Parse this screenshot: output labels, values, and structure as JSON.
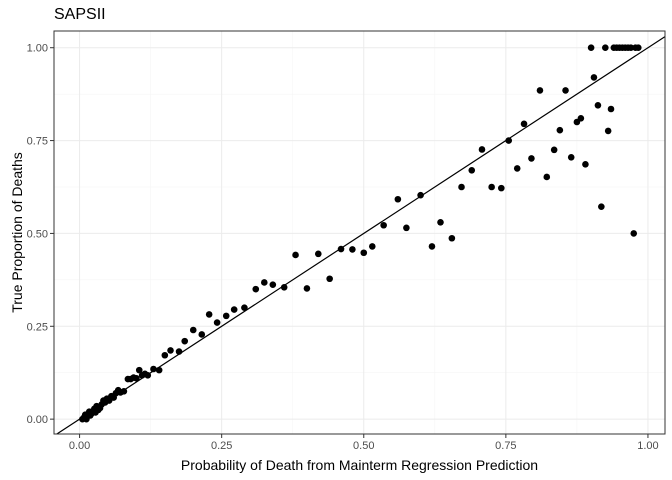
{
  "chart_data": {
    "type": "scatter",
    "title": "SAPSII",
    "xlabel": "Probability of Death from Mainterm Regression Prediction",
    "ylabel": "True Proportion of Deaths",
    "xlim": [
      -0.045,
      1.03
    ],
    "ylim": [
      -0.04,
      1.045
    ],
    "x_ticks": [
      0.0,
      0.25,
      0.5,
      0.75,
      1.0
    ],
    "x_tick_labels": [
      "0.00",
      "0.25",
      "0.50",
      "0.75",
      "1.00"
    ],
    "y_ticks": [
      0.0,
      0.25,
      0.5,
      0.75,
      1.0
    ],
    "y_tick_labels": [
      "0.00",
      "0.25",
      "0.50",
      "0.75",
      "1.00"
    ],
    "grid": true,
    "reference_line": {
      "intercept": 0,
      "slope": 1
    },
    "points": [
      [
        0.005,
        0.0
      ],
      [
        0.008,
        0.005
      ],
      [
        0.01,
        0.012
      ],
      [
        0.012,
        0.0
      ],
      [
        0.014,
        0.008
      ],
      [
        0.017,
        0.02
      ],
      [
        0.019,
        0.01
      ],
      [
        0.021,
        0.015
      ],
      [
        0.024,
        0.022
      ],
      [
        0.026,
        0.028
      ],
      [
        0.028,
        0.018
      ],
      [
        0.03,
        0.035
      ],
      [
        0.033,
        0.025
      ],
      [
        0.036,
        0.03
      ],
      [
        0.039,
        0.04
      ],
      [
        0.042,
        0.05
      ],
      [
        0.045,
        0.045
      ],
      [
        0.048,
        0.055
      ],
      [
        0.052,
        0.05
      ],
      [
        0.056,
        0.062
      ],
      [
        0.06,
        0.058
      ],
      [
        0.064,
        0.07
      ],
      [
        0.068,
        0.078
      ],
      [
        0.072,
        0.072
      ],
      [
        0.078,
        0.075
      ],
      [
        0.085,
        0.108
      ],
      [
        0.09,
        0.108
      ],
      [
        0.095,
        0.112
      ],
      [
        0.1,
        0.11
      ],
      [
        0.105,
        0.132
      ],
      [
        0.11,
        0.118
      ],
      [
        0.115,
        0.122
      ],
      [
        0.12,
        0.118
      ],
      [
        0.13,
        0.135
      ],
      [
        0.14,
        0.132
      ],
      [
        0.15,
        0.172
      ],
      [
        0.16,
        0.185
      ],
      [
        0.175,
        0.182
      ],
      [
        0.185,
        0.21
      ],
      [
        0.2,
        0.24
      ],
      [
        0.215,
        0.228
      ],
      [
        0.228,
        0.282
      ],
      [
        0.242,
        0.26
      ],
      [
        0.258,
        0.278
      ],
      [
        0.272,
        0.295
      ],
      [
        0.29,
        0.3
      ],
      [
        0.31,
        0.35
      ],
      [
        0.325,
        0.368
      ],
      [
        0.34,
        0.362
      ],
      [
        0.36,
        0.355
      ],
      [
        0.38,
        0.442
      ],
      [
        0.4,
        0.352
      ],
      [
        0.42,
        0.445
      ],
      [
        0.44,
        0.378
      ],
      [
        0.46,
        0.458
      ],
      [
        0.48,
        0.457
      ],
      [
        0.5,
        0.448
      ],
      [
        0.515,
        0.465
      ],
      [
        0.535,
        0.522
      ],
      [
        0.56,
        0.592
      ],
      [
        0.575,
        0.515
      ],
      [
        0.6,
        0.603
      ],
      [
        0.62,
        0.465
      ],
      [
        0.635,
        0.53
      ],
      [
        0.655,
        0.487
      ],
      [
        0.672,
        0.625
      ],
      [
        0.69,
        0.67
      ],
      [
        0.708,
        0.726
      ],
      [
        0.725,
        0.625
      ],
      [
        0.742,
        0.622
      ],
      [
        0.755,
        0.75
      ],
      [
        0.77,
        0.675
      ],
      [
        0.782,
        0.795
      ],
      [
        0.795,
        0.702
      ],
      [
        0.81,
        0.885
      ],
      [
        0.822,
        0.652
      ],
      [
        0.835,
        0.725
      ],
      [
        0.845,
        0.778
      ],
      [
        0.855,
        0.885
      ],
      [
        0.865,
        0.705
      ],
      [
        0.875,
        0.8
      ],
      [
        0.882,
        0.81
      ],
      [
        0.89,
        0.686
      ],
      [
        0.9,
        1.0
      ],
      [
        0.905,
        0.92
      ],
      [
        0.912,
        0.845
      ],
      [
        0.918,
        0.572
      ],
      [
        0.925,
        1.0
      ],
      [
        0.93,
        0.776
      ],
      [
        0.935,
        0.835
      ],
      [
        0.94,
        1.0
      ],
      [
        0.945,
        1.0
      ],
      [
        0.95,
        1.0
      ],
      [
        0.955,
        1.0
      ],
      [
        0.96,
        1.0
      ],
      [
        0.965,
        1.0
      ],
      [
        0.97,
        1.0
      ],
      [
        0.975,
        0.5
      ],
      [
        0.978,
        1.0
      ],
      [
        0.983,
        1.0
      ]
    ]
  }
}
